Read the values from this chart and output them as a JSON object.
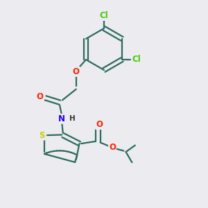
{
  "bg_color": "#ebebf0",
  "bond_color": "#2d6b5e",
  "bond_width": 1.6,
  "atom_colors": {
    "Cl": "#44cc00",
    "O": "#ff2200",
    "N": "#2200ff",
    "S": "#cccc00",
    "H": "#333333"
  },
  "font_size": 8.5,
  "fig_size": [
    3.0,
    3.0
  ],
  "dpi": 100
}
